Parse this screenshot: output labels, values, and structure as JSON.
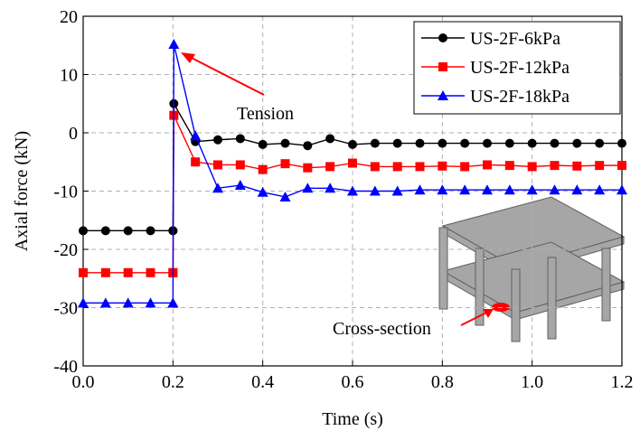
{
  "chart_data": {
    "type": "line",
    "x_label": "Time (s)",
    "y_label": "Axial force (kN)",
    "x": [
      0,
      0.05,
      0.1,
      0.15,
      0.2,
      0.2,
      0.202,
      0.25,
      0.3,
      0.35,
      0.4,
      0.45,
      0.5,
      0.55,
      0.6,
      0.65,
      0.7,
      0.75,
      0.8,
      0.85,
      0.9,
      0.95,
      1.0,
      1.05,
      1.1,
      1.15,
      1.2
    ],
    "series": [
      {
        "name": "US-2F-6kPa",
        "color": "#000000",
        "marker": "circle",
        "values": [
          -16.8,
          -16.8,
          -16.8,
          -16.8,
          -16.8,
          -16.8,
          5,
          -1.5,
          -1.2,
          -1,
          -2,
          -1.8,
          -2.2,
          -1,
          -2,
          -1.8,
          -1.8,
          -1.8,
          -1.8,
          -1.8,
          -1.8,
          -1.8,
          -1.8,
          -1.8,
          -1.8,
          -1.8,
          -1.8
        ]
      },
      {
        "name": "US-2F-12kPa",
        "color": "#ff0000",
        "marker": "square",
        "values": [
          -24,
          -24,
          -24,
          -24,
          -24,
          -24,
          3,
          -5,
          -5.5,
          -5.5,
          -6.3,
          -5.3,
          -6,
          -5.8,
          -5.2,
          -5.8,
          -5.8,
          -5.8,
          -5.7,
          -5.8,
          -5.5,
          -5.6,
          -5.8,
          -5.6,
          -5.7,
          -5.6,
          -5.6
        ]
      },
      {
        "name": "US-2F-18kPa",
        "color": "#0000ff",
        "marker": "triangle",
        "values": [
          -29.2,
          -29.2,
          -29.2,
          -29.2,
          -29.2,
          -29.2,
          15.2,
          -0.5,
          -9.5,
          -9,
          -10.2,
          -11,
          -9.5,
          -9.5,
          -10,
          -10,
          -10,
          -9.8,
          -9.8,
          -9.8,
          -9.8,
          -9.8,
          -9.8,
          -9.8,
          -9.8,
          -9.8,
          -9.8
        ]
      }
    ],
    "xlim": [
      0,
      1.2
    ],
    "xticks": [
      {
        "value": 0,
        "label": "0.0"
      },
      0.2,
      0.4,
      0.6,
      0.8,
      {
        "value": 1,
        "label": "1.0"
      },
      1.2
    ],
    "ylim": [
      -40,
      20
    ],
    "yticks": [
      -40,
      -30,
      -20,
      -10,
      0,
      10,
      20
    ],
    "grid": true,
    "legend": "upper right",
    "annotations": [
      "Tension",
      "Cross-section"
    ]
  }
}
